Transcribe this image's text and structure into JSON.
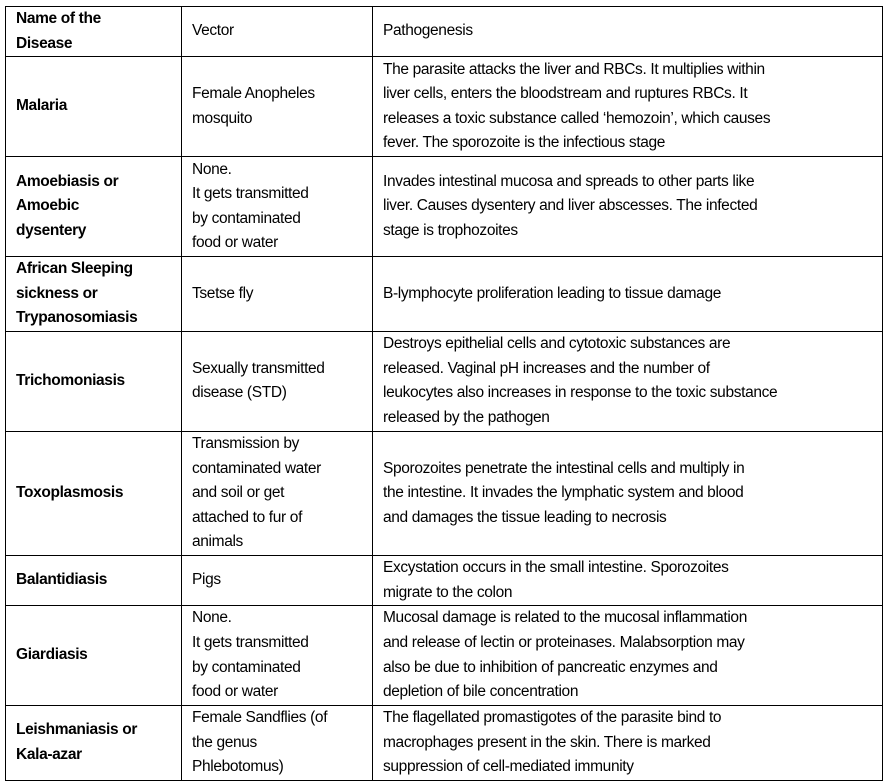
{
  "headers": [
    [
      "Name of the",
      "Disease"
    ],
    [
      "Vector"
    ],
    [
      "Pathogenesis"
    ]
  ],
  "rows": [
    {
      "disease": [
        "Malaria"
      ],
      "vector": [
        "Female Anopheles",
        "mosquito"
      ],
      "pathogenesis": [
        "The parasite attacks the liver and RBCs. It multiplies within",
        "liver cells, enters the bloodstream and ruptures RBCs. It",
        "releases a toxic substance called ‘hemozoin’, which causes",
        "fever. The sporozoite is the infectious stage"
      ]
    },
    {
      "disease": [
        "Amoebiasis or",
        "Amoebic",
        "dysentery"
      ],
      "vector": [
        "None.",
        "It gets transmitted",
        "by contaminated",
        "food or water"
      ],
      "pathogenesis": [
        "Invades intestinal mucosa and spreads to other parts like",
        "liver. Causes dysentery and liver abscesses. The infected",
        "stage is trophozoites"
      ]
    },
    {
      "disease": [
        "African Sleeping",
        "sickness or",
        "Trypanosomiasis"
      ],
      "vector": [
        "Tsetse fly"
      ],
      "pathogenesis": [
        "B-lymphocyte proliferation leading to tissue damage"
      ]
    },
    {
      "disease": [
        "Trichomoniasis"
      ],
      "vector": [
        "Sexually transmitted",
        "disease (STD)"
      ],
      "pathogenesis": [
        "Destroys epithelial cells and cytotoxic substances are",
        "released. Vaginal pH increases and the number of",
        "leukocytes also increases in response to the toxic substance",
        "released by the pathogen"
      ]
    },
    {
      "disease": [
        "Toxoplasmosis"
      ],
      "vector": [
        "Transmission by",
        "contaminated water",
        "and soil or get",
        "attached to fur of",
        "animals"
      ],
      "pathogenesis": [
        "Sporozoites penetrate the intestinal cells and multiply in",
        "the intestine. It invades the lymphatic system and blood",
        "and damages the tissue leading to necrosis"
      ]
    },
    {
      "disease": [
        "Balantidiasis"
      ],
      "vector": [
        "Pigs"
      ],
      "pathogenesis": [
        "Excystation occurs in the small intestine. Sporozoites",
        "migrate to the colon"
      ]
    },
    {
      "disease": [
        "Giardiasis"
      ],
      "vector": [
        "None.",
        "It gets transmitted",
        "by contaminated",
        "food or water"
      ],
      "pathogenesis": [
        "Mucosal damage is related to the mucosal inflammation",
        "and release of lectin or proteinases. Malabsorption may",
        "also be due to inhibition of pancreatic enzymes and",
        "depletion of bile concentration"
      ]
    },
    {
      "disease": [
        "Leishmaniasis or",
        "Kala-azar"
      ],
      "vector": [
        "Female Sandflies (of",
        "the genus",
        "Phlebotomus)"
      ],
      "pathogenesis": [
        "The flagellated promastigotes of the parasite bind to",
        "macrophages present in the skin. There is marked",
        "suppression of cell-mediated immunity"
      ]
    }
  ]
}
